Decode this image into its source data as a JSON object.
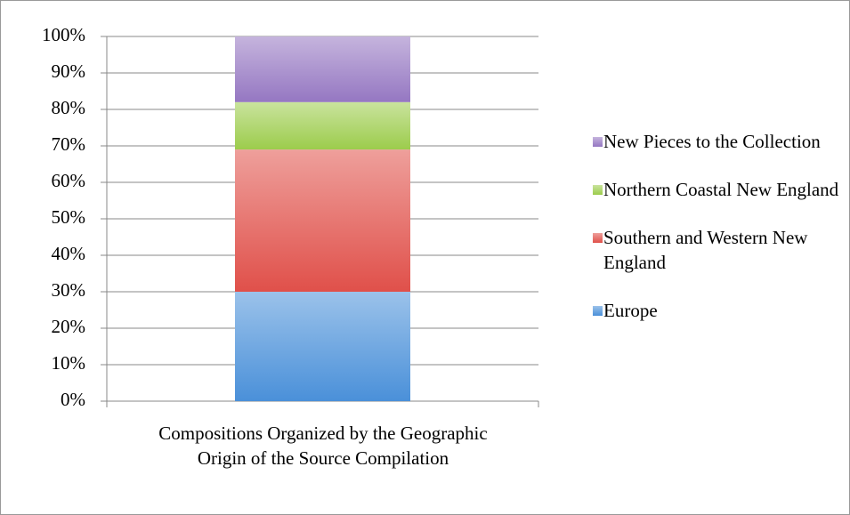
{
  "chart_data": {
    "type": "stacked_bar_100",
    "categories": [
      "Compositions Organized by the Geographic Origin of the Source Compilation"
    ],
    "series": [
      {
        "name": "Europe",
        "color": "#4a90d9",
        "values": [
          30
        ]
      },
      {
        "name": "Southern and Western New England",
        "color": "#e0504a",
        "values": [
          39
        ]
      },
      {
        "name": "Northern Coastal New England",
        "color": "#9ccc4c",
        "values": [
          13
        ]
      },
      {
        "name": "New Pieces to the Collection",
        "color": "#9577c2",
        "values": [
          18
        ]
      }
    ],
    "ylim": [
      0,
      100
    ],
    "yticks": [
      {
        "value": 0,
        "label": "0%"
      },
      {
        "value": 10,
        "label": "10%"
      },
      {
        "value": 20,
        "label": "20%"
      },
      {
        "value": 30,
        "label": "30%"
      },
      {
        "value": 40,
        "label": "40%"
      },
      {
        "value": 50,
        "label": "50%"
      },
      {
        "value": 60,
        "label": "60%"
      },
      {
        "value": 70,
        "label": "70%"
      },
      {
        "value": 80,
        "label": "80%"
      },
      {
        "value": 90,
        "label": "90%"
      },
      {
        "value": 100,
        "label": "100%"
      }
    ],
    "grid": true,
    "legend": "right"
  }
}
